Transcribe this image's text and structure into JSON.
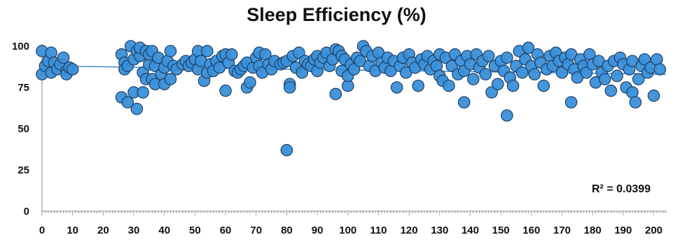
{
  "chart_data": {
    "type": "scatter",
    "title": "Sleep Efficiency (%)",
    "xlabel": "",
    "ylabel": "",
    "xlim": [
      0,
      204
    ],
    "ylim": [
      0,
      100
    ],
    "x_ticks": [
      0,
      10,
      20,
      30,
      40,
      50,
      60,
      70,
      80,
      90,
      100,
      110,
      120,
      130,
      140,
      150,
      160,
      170,
      180,
      190,
      200
    ],
    "y_ticks": [
      0,
      25,
      50,
      75,
      100
    ],
    "annotation": "R² = 0.0399",
    "grid": false,
    "marker_color": "#3a8fd8",
    "marker_edge": "#1d3f66",
    "trendline_color": "#2e7fd0",
    "trendline": {
      "x": [
        0,
        204
      ],
      "y": [
        88,
        83
      ]
    },
    "points": [
      [
        0,
        83
      ],
      [
        0,
        97
      ],
      [
        1,
        88
      ],
      [
        2,
        91
      ],
      [
        3,
        96
      ],
      [
        3,
        84
      ],
      [
        4,
        90
      ],
      [
        5,
        86
      ],
      [
        6,
        89
      ],
      [
        7,
        93
      ],
      [
        8,
        85
      ],
      [
        8,
        83
      ],
      [
        9,
        87
      ],
      [
        10,
        86
      ],
      [
        26,
        95
      ],
      [
        26,
        69
      ],
      [
        27,
        90
      ],
      [
        27,
        86
      ],
      [
        28,
        88
      ],
      [
        28,
        66
      ],
      [
        29,
        100
      ],
      [
        30,
        72
      ],
      [
        30,
        92
      ],
      [
        31,
        62
      ],
      [
        31,
        97
      ],
      [
        32,
        94
      ],
      [
        32,
        99
      ],
      [
        33,
        84
      ],
      [
        33,
        72
      ],
      [
        34,
        97
      ],
      [
        34,
        80
      ],
      [
        35,
        89
      ],
      [
        35,
        95
      ],
      [
        36,
        80
      ],
      [
        36,
        97
      ],
      [
        37,
        88
      ],
      [
        37,
        77
      ],
      [
        38,
        93
      ],
      [
        39,
        83
      ],
      [
        40,
        87
      ],
      [
        40,
        77
      ],
      [
        41,
        91
      ],
      [
        42,
        97
      ],
      [
        42,
        80
      ],
      [
        43,
        88
      ],
      [
        44,
        86
      ],
      [
        46,
        89
      ],
      [
        47,
        91
      ],
      [
        48,
        88
      ],
      [
        49,
        90
      ],
      [
        50,
        92
      ],
      [
        51,
        97
      ],
      [
        51,
        86
      ],
      [
        52,
        91
      ],
      [
        53,
        79
      ],
      [
        54,
        97
      ],
      [
        54,
        84
      ],
      [
        55,
        89
      ],
      [
        56,
        85
      ],
      [
        57,
        91
      ],
      [
        58,
        87
      ],
      [
        59,
        94
      ],
      [
        60,
        73
      ],
      [
        60,
        95
      ],
      [
        61,
        90
      ],
      [
        62,
        95
      ],
      [
        63,
        85
      ],
      [
        64,
        84
      ],
      [
        65,
        86
      ],
      [
        66,
        88
      ],
      [
        67,
        75
      ],
      [
        67,
        90
      ],
      [
        68,
        78
      ],
      [
        69,
        87
      ],
      [
        70,
        93
      ],
      [
        71,
        88
      ],
      [
        71,
        96
      ],
      [
        72,
        84
      ],
      [
        73,
        95
      ],
      [
        74,
        89
      ],
      [
        75,
        86
      ],
      [
        76,
        91
      ],
      [
        78,
        89
      ],
      [
        79,
        90
      ],
      [
        80,
        37
      ],
      [
        80,
        91
      ],
      [
        81,
        77
      ],
      [
        81,
        75
      ],
      [
        82,
        94
      ],
      [
        83,
        87
      ],
      [
        84,
        96
      ],
      [
        85,
        84
      ],
      [
        86,
        91
      ],
      [
        87,
        89
      ],
      [
        88,
        88
      ],
      [
        89,
        92
      ],
      [
        90,
        94
      ],
      [
        90,
        85
      ],
      [
        91,
        90
      ],
      [
        92,
        93
      ],
      [
        93,
        96
      ],
      [
        94,
        88
      ],
      [
        95,
        92
      ],
      [
        96,
        98
      ],
      [
        96,
        71
      ],
      [
        97,
        97
      ],
      [
        98,
        94
      ],
      [
        98,
        85
      ],
      [
        99,
        92
      ],
      [
        100,
        76
      ],
      [
        100,
        82
      ],
      [
        101,
        89
      ],
      [
        102,
        86
      ],
      [
        103,
        93
      ],
      [
        104,
        91
      ],
      [
        105,
        100
      ],
      [
        106,
        97
      ],
      [
        107,
        88
      ],
      [
        108,
        94
      ],
      [
        109,
        85
      ],
      [
        110,
        96
      ],
      [
        111,
        90
      ],
      [
        112,
        87
      ],
      [
        113,
        93
      ],
      [
        114,
        85
      ],
      [
        115,
        91
      ],
      [
        116,
        75
      ],
      [
        117,
        88
      ],
      [
        118,
        93
      ],
      [
        119,
        84
      ],
      [
        120,
        95
      ],
      [
        121,
        90
      ],
      [
        122,
        87
      ],
      [
        123,
        76
      ],
      [
        124,
        92
      ],
      [
        125,
        89
      ],
      [
        126,
        94
      ],
      [
        127,
        86
      ],
      [
        128,
        91
      ],
      [
        129,
        88
      ],
      [
        130,
        82
      ],
      [
        130,
        95
      ],
      [
        131,
        79
      ],
      [
        132,
        93
      ],
      [
        133,
        76
      ],
      [
        134,
        88
      ],
      [
        135,
        95
      ],
      [
        136,
        83
      ],
      [
        137,
        91
      ],
      [
        138,
        66
      ],
      [
        138,
        85
      ],
      [
        139,
        94
      ],
      [
        140,
        89
      ],
      [
        141,
        80
      ],
      [
        142,
        95
      ],
      [
        143,
        87
      ],
      [
        144,
        91
      ],
      [
        145,
        83
      ],
      [
        146,
        94
      ],
      [
        147,
        72
      ],
      [
        148,
        88
      ],
      [
        149,
        77
      ],
      [
        150,
        91
      ],
      [
        151,
        85
      ],
      [
        152,
        58
      ],
      [
        152,
        93
      ],
      [
        153,
        81
      ],
      [
        154,
        76
      ],
      [
        155,
        88
      ],
      [
        156,
        97
      ],
      [
        157,
        84
      ],
      [
        158,
        92
      ],
      [
        159,
        99
      ],
      [
        160,
        88
      ],
      [
        161,
        83
      ],
      [
        162,
        95
      ],
      [
        163,
        90
      ],
      [
        164,
        76
      ],
      [
        165,
        86
      ],
      [
        166,
        94
      ],
      [
        167,
        88
      ],
      [
        168,
        96
      ],
      [
        169,
        91
      ],
      [
        170,
        84
      ],
      [
        171,
        93
      ],
      [
        172,
        89
      ],
      [
        173,
        66
      ],
      [
        173,
        95
      ],
      [
        174,
        86
      ],
      [
        175,
        81
      ],
      [
        176,
        92
      ],
      [
        177,
        88
      ],
      [
        178,
        84
      ],
      [
        179,
        95
      ],
      [
        180,
        89
      ],
      [
        181,
        78
      ],
      [
        182,
        91
      ],
      [
        183,
        84
      ],
      [
        184,
        80
      ],
      [
        185,
        88
      ],
      [
        186,
        73
      ],
      [
        187,
        91
      ],
      [
        188,
        82
      ],
      [
        189,
        93
      ],
      [
        190,
        89
      ],
      [
        191,
        75
      ],
      [
        192,
        86
      ],
      [
        193,
        72
      ],
      [
        193,
        91
      ],
      [
        194,
        66
      ],
      [
        195,
        80
      ],
      [
        196,
        88
      ],
      [
        197,
        92
      ],
      [
        198,
        84
      ],
      [
        199,
        87
      ],
      [
        200,
        70
      ],
      [
        201,
        92
      ],
      [
        202,
        86
      ]
    ]
  }
}
